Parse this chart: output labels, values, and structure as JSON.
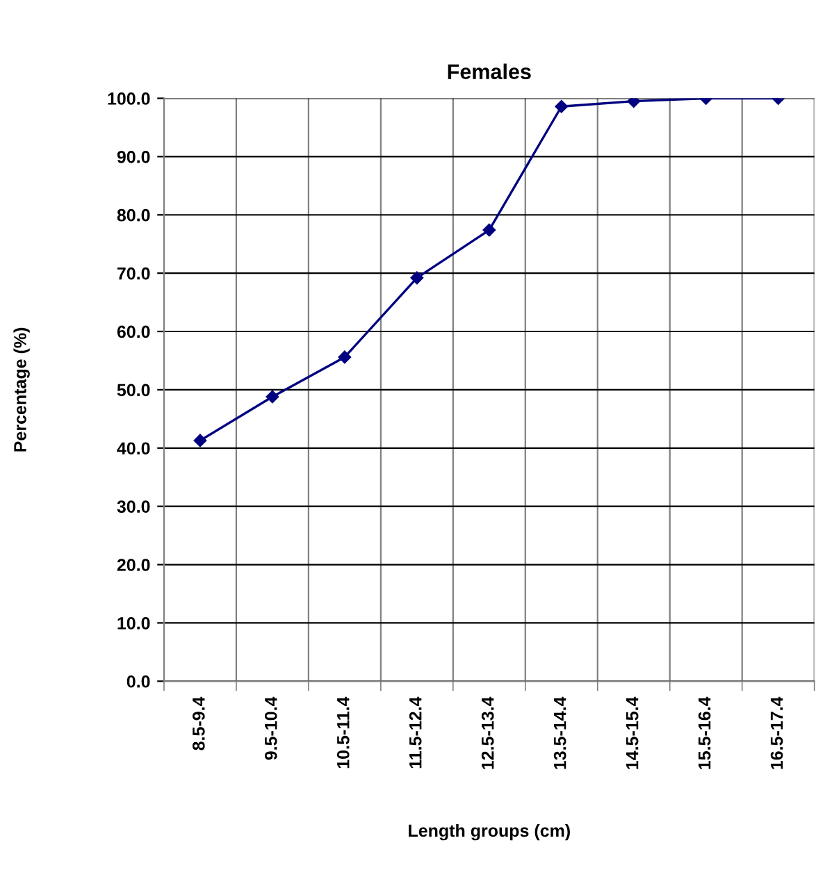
{
  "chart_data": {
    "type": "line",
    "title": "Females",
    "xlabel": "Length groups (cm)",
    "ylabel": "Percentage (%)",
    "categories": [
      "8.5-9.4",
      "9.5-10.4",
      "10.5-11.4",
      "11.5-12.4",
      "12.5-13.4",
      "13.5-14.4",
      "14.5-15.4",
      "15.5-16.4",
      "16.5-17.4"
    ],
    "series": [
      {
        "color": "#000080",
        "values": [
          41.3,
          48.8,
          55.6,
          69.2,
          77.4,
          98.6,
          99.5,
          100.0,
          100.0
        ]
      }
    ],
    "ylim": [
      0,
      100
    ],
    "yticks": [
      {
        "value": 0,
        "label": "0.0"
      },
      {
        "value": 10,
        "label": "10.0"
      },
      {
        "value": 20,
        "label": "20.0"
      },
      {
        "value": 30,
        "label": "30.0"
      },
      {
        "value": 40,
        "label": "40.0"
      },
      {
        "value": 50,
        "label": "50.0"
      },
      {
        "value": 60,
        "label": "60.0"
      },
      {
        "value": 70,
        "label": "70.0"
      },
      {
        "value": 80,
        "label": "80.0"
      },
      {
        "value": 90,
        "label": "90.0"
      },
      {
        "value": 100,
        "label": "100.0"
      }
    ],
    "grid": true,
    "marker": "diamond",
    "line_style": "solid"
  }
}
